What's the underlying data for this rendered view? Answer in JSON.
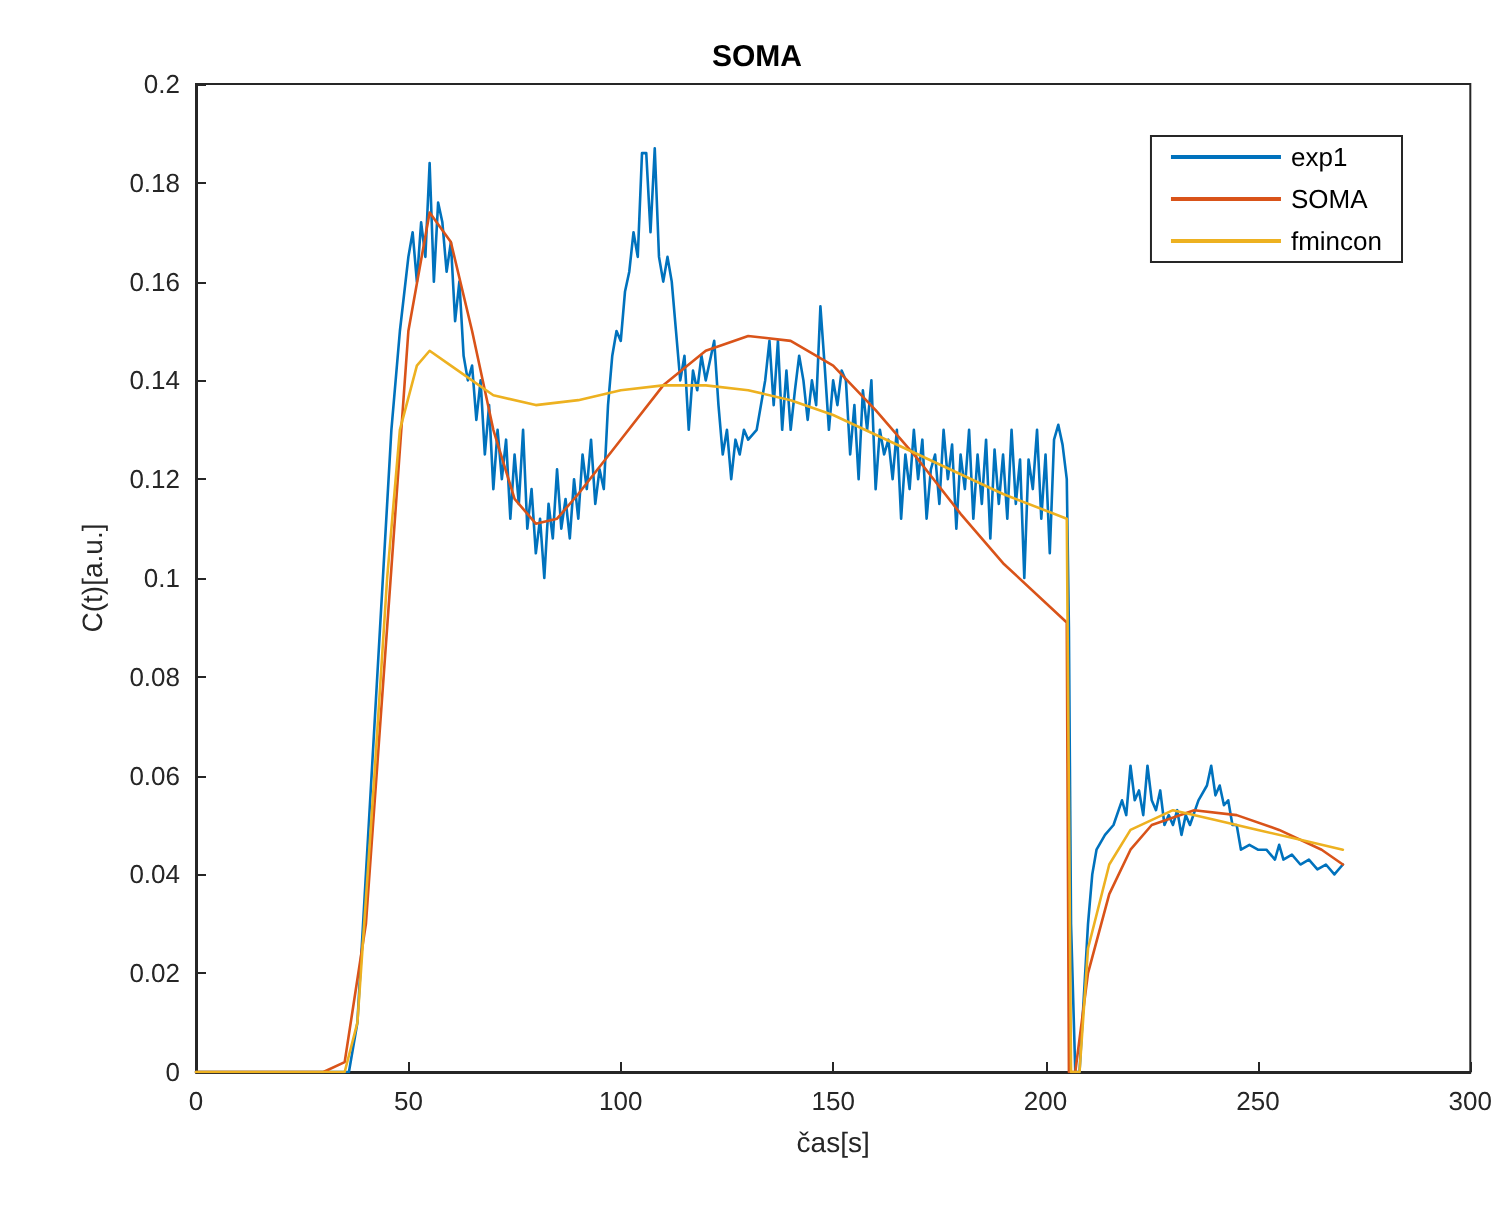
{
  "chart_data": {
    "type": "line",
    "title": "SOMA",
    "xlabel": "čas[s]",
    "ylabel": "C(t)[a.u.]",
    "xlim": [
      0,
      300
    ],
    "xticks": [
      0,
      50,
      100,
      150,
      200,
      250,
      300
    ],
    "ylim": [
      0,
      0.2
    ],
    "yticks": [
      0,
      0.02,
      0.04,
      0.06,
      0.08,
      0.1,
      0.12,
      0.14,
      0.16,
      0.18,
      0.2
    ],
    "grid": false,
    "legend": "top right",
    "marker": "none",
    "line_style": "solid",
    "series": [
      {
        "name": "exp1",
        "color": "#0072bd",
        "x": [
          0,
          30,
          36,
          38,
          40,
          42,
          44,
          46,
          48,
          50,
          51,
          52,
          53,
          54,
          55,
          56,
          57,
          58,
          59,
          60,
          61,
          62,
          63,
          64,
          65,
          66,
          67,
          68,
          69,
          70,
          71,
          72,
          73,
          74,
          75,
          76,
          77,
          78,
          79,
          80,
          81,
          82,
          83,
          84,
          85,
          86,
          87,
          88,
          89,
          90,
          91,
          92,
          93,
          94,
          95,
          96,
          97,
          98,
          99,
          100,
          101,
          102,
          103,
          104,
          105,
          106,
          107,
          108,
          109,
          110,
          111,
          112,
          113,
          114,
          115,
          116,
          117,
          118,
          119,
          120,
          122,
          123,
          124,
          125,
          126,
          127,
          128,
          129,
          130,
          132,
          134,
          135,
          136,
          137,
          138,
          139,
          140,
          141,
          142,
          143,
          144,
          145,
          146,
          147,
          148,
          149,
          150,
          151,
          152,
          153,
          154,
          155,
          156,
          157,
          158,
          159,
          160,
          161,
          162,
          163,
          164,
          165,
          166,
          167,
          168,
          169,
          170,
          171,
          172,
          173,
          174,
          175,
          176,
          177,
          178,
          179,
          180,
          181,
          182,
          183,
          184,
          185,
          186,
          187,
          188,
          189,
          190,
          191,
          192,
          193,
          194,
          195,
          196,
          197,
          198,
          199,
          200,
          201,
          202,
          203,
          204,
          205,
          205.5,
          206,
          207,
          208,
          209,
          210,
          211,
          212,
          214,
          216,
          218,
          219,
          220,
          221,
          222,
          223,
          224,
          225,
          226,
          227,
          228,
          229,
          230,
          231,
          232,
          233,
          234,
          236,
          238,
          239,
          240,
          241,
          242,
          243,
          244,
          245,
          246,
          248,
          250,
          252,
          254,
          255,
          256,
          258,
          260,
          262,
          264,
          266,
          268,
          270
        ],
        "values": [
          0,
          0,
          0,
          0.01,
          0.04,
          0.07,
          0.1,
          0.13,
          0.15,
          0.165,
          0.17,
          0.16,
          0.172,
          0.165,
          0.184,
          0.16,
          0.176,
          0.172,
          0.162,
          0.168,
          0.152,
          0.16,
          0.145,
          0.14,
          0.143,
          0.132,
          0.14,
          0.125,
          0.135,
          0.118,
          0.13,
          0.12,
          0.128,
          0.112,
          0.125,
          0.115,
          0.13,
          0.11,
          0.118,
          0.105,
          0.112,
          0.1,
          0.115,
          0.108,
          0.122,
          0.11,
          0.116,
          0.108,
          0.12,
          0.112,
          0.125,
          0.118,
          0.128,
          0.115,
          0.122,
          0.118,
          0.135,
          0.145,
          0.15,
          0.148,
          0.158,
          0.162,
          0.17,
          0.165,
          0.186,
          0.186,
          0.17,
          0.187,
          0.165,
          0.16,
          0.165,
          0.16,
          0.15,
          0.14,
          0.145,
          0.13,
          0.142,
          0.138,
          0.145,
          0.14,
          0.148,
          0.135,
          0.125,
          0.13,
          0.12,
          0.128,
          0.125,
          0.13,
          0.128,
          0.13,
          0.14,
          0.148,
          0.135,
          0.148,
          0.13,
          0.142,
          0.13,
          0.138,
          0.145,
          0.14,
          0.132,
          0.14,
          0.135,
          0.155,
          0.143,
          0.13,
          0.14,
          0.135,
          0.142,
          0.14,
          0.125,
          0.135,
          0.12,
          0.138,
          0.13,
          0.14,
          0.118,
          0.13,
          0.125,
          0.128,
          0.12,
          0.13,
          0.112,
          0.125,
          0.118,
          0.13,
          0.12,
          0.128,
          0.112,
          0.122,
          0.125,
          0.115,
          0.13,
          0.12,
          0.127,
          0.11,
          0.125,
          0.118,
          0.13,
          0.112,
          0.125,
          0.115,
          0.128,
          0.108,
          0.126,
          0.115,
          0.125,
          0.112,
          0.13,
          0.115,
          0.124,
          0.1,
          0.124,
          0.118,
          0.13,
          0.112,
          0.125,
          0.105,
          0.128,
          0.131,
          0.127,
          0.12,
          0.09,
          0.03,
          0,
          0,
          0.015,
          0.03,
          0.04,
          0.045,
          0.048,
          0.05,
          0.055,
          0.052,
          0.062,
          0.055,
          0.057,
          0.052,
          0.062,
          0.055,
          0.053,
          0.057,
          0.05,
          0.052,
          0.05,
          0.053,
          0.048,
          0.052,
          0.05,
          0.055,
          0.058,
          0.062,
          0.056,
          0.058,
          0.054,
          0.055,
          0.05,
          0.05,
          0.045,
          0.046,
          0.045,
          0.045,
          0.043,
          0.046,
          0.043,
          0.044,
          0.042,
          0.043,
          0.041,
          0.042,
          0.04,
          0.042
        ]
      },
      {
        "name": "SOMA",
        "color": "#d95319",
        "x": [
          0,
          30,
          35,
          40,
          45,
          50,
          55,
          60,
          65,
          70,
          75,
          80,
          85,
          90,
          100,
          110,
          120,
          130,
          140,
          150,
          160,
          170,
          180,
          190,
          205,
          205.5,
          207,
          210,
          215,
          220,
          225,
          235,
          245,
          255,
          265,
          270
        ],
        "values": [
          0,
          0,
          0.002,
          0.03,
          0.09,
          0.15,
          0.174,
          0.168,
          0.15,
          0.13,
          0.116,
          0.111,
          0.112,
          0.117,
          0.128,
          0.139,
          0.146,
          0.149,
          0.148,
          0.143,
          0.134,
          0.124,
          0.113,
          0.103,
          0.091,
          0,
          0,
          0.02,
          0.036,
          0.045,
          0.05,
          0.053,
          0.052,
          0.049,
          0.045,
          0.042
        ]
      },
      {
        "name": "fmincon",
        "color": "#edb120",
        "x": [
          0,
          35,
          38,
          42,
          45,
          48,
          52,
          55,
          60,
          70,
          80,
          90,
          100,
          110,
          120,
          130,
          140,
          150,
          160,
          170,
          180,
          190,
          205,
          206,
          208,
          210,
          215,
          220,
          230,
          240,
          250,
          260,
          270
        ],
        "values": [
          0,
          0,
          0.01,
          0.06,
          0.1,
          0.13,
          0.143,
          0.146,
          0.143,
          0.137,
          0.135,
          0.136,
          0.138,
          0.139,
          0.139,
          0.138,
          0.136,
          0.133,
          0.129,
          0.125,
          0.121,
          0.117,
          0.112,
          0,
          0,
          0.025,
          0.042,
          0.049,
          0.053,
          0.051,
          0.049,
          0.047,
          0.045
        ]
      }
    ]
  }
}
